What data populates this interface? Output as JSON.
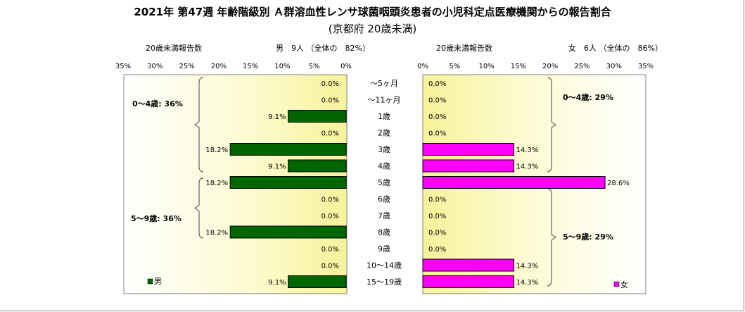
{
  "chart_data": {
    "type": "bar",
    "title": "2021年 第47週 年齢階級別 Ａ群溶血性レンサ球菌咽頭炎患者の小児科定点医療機関からの報告割合",
    "subtitle": "(京都府 20歳未満)",
    "categories": [
      "～5ヶ月",
      "～11ヶ月",
      "1歳",
      "2歳",
      "3歳",
      "4歳",
      "5歳",
      "6歳",
      "7歳",
      "8歳",
      "9歳",
      "10～14歳",
      "15～19歳"
    ],
    "xlim": [
      0,
      35
    ],
    "ticks": [
      "0%",
      "5%",
      "10%",
      "15%",
      "20%",
      "25%",
      "30%",
      "35%"
    ],
    "grid": false,
    "series": [
      {
        "name": "男",
        "side": "left",
        "color": "#006600",
        "values": [
          0.0,
          0.0,
          9.1,
          0.0,
          18.2,
          9.1,
          18.2,
          0.0,
          0.0,
          18.2,
          0.0,
          0.0,
          9.1
        ],
        "labels": [
          "0.0%",
          "0.0%",
          "9.1%",
          "0.0%",
          "18.2%",
          "9.1%",
          "18.2%",
          "0.0%",
          "0.0%",
          "18.2%",
          "0.0%",
          "0.0%",
          "9.1%"
        ],
        "header_left": "20歳未満報告数",
        "header_right": "男　9人 （全体の　82%）",
        "groups": [
          "0～4歳: 36%",
          "5～9歳: 36%"
        ],
        "legend": "男"
      },
      {
        "name": "女",
        "side": "right",
        "color": "#ff00ff",
        "values": [
          0.0,
          0.0,
          0.0,
          0.0,
          14.3,
          14.3,
          28.6,
          0.0,
          0.0,
          0.0,
          0.0,
          14.3,
          14.3
        ],
        "labels": [
          "0.0%",
          "0.0%",
          "0.0%",
          "0.0%",
          "14.3%",
          "14.3%",
          "28.6%",
          "0.0%",
          "0.0%",
          "0.0%",
          "0.0%",
          "14.3%",
          "14.3%"
        ],
        "header_left": "20歳未満報告数",
        "header_right": "女　6人 （全体の　86%）",
        "groups": [
          "0～4歳: 29%",
          "5～9歳: 29%"
        ],
        "legend": "女"
      }
    ]
  }
}
